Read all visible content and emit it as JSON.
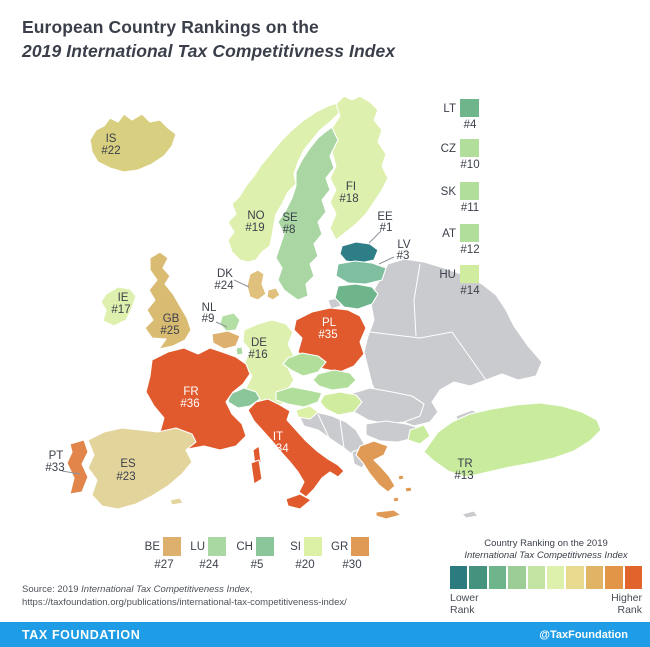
{
  "title": {
    "line1": "European Country Rankings on the",
    "line2": "2019 International Tax Competitivness Index"
  },
  "map": {
    "labels": [
      {
        "code": "IS",
        "rank": "#22"
      },
      {
        "code": "NO",
        "rank": "#19"
      },
      {
        "code": "SE",
        "rank": "#8"
      },
      {
        "code": "FI",
        "rank": "#18"
      },
      {
        "code": "EE",
        "rank": "#1"
      },
      {
        "code": "LV",
        "rank": "#3"
      },
      {
        "code": "DK",
        "rank": "#24"
      },
      {
        "code": "IE",
        "rank": "#17"
      },
      {
        "code": "GB",
        "rank": "#25"
      },
      {
        "code": "NL",
        "rank": "#9"
      },
      {
        "code": "DE",
        "rank": "#16"
      },
      {
        "code": "PL",
        "rank": "#35"
      },
      {
        "code": "FR",
        "rank": "#36"
      },
      {
        "code": "IT",
        "rank": "#34"
      },
      {
        "code": "ES",
        "rank": "#23"
      },
      {
        "code": "PT",
        "rank": "#33"
      },
      {
        "code": "TR",
        "rank": "#13"
      }
    ],
    "colors": {
      "is": "#d8cf81",
      "no": "#ddf0ae",
      "se": "#a9d6a2",
      "fi": "#ddf0ae",
      "ee": "#2e7e87",
      "lv": "#7fbfa0",
      "lt": "#6fb58c",
      "dk": "#dfc07c",
      "ie": "#ddf0ae",
      "gb": "#d9bb72",
      "nl": "#b4dfa4",
      "be": "#ddb06e",
      "lu": "#a9d8a2",
      "de": "#ddf0ae",
      "pl": "#e05a2d",
      "cz": "#b2de9b",
      "sk": "#b2de9b",
      "at": "#b2de9b",
      "hu": "#d0ec9e",
      "ch": "#8ac69a",
      "si": "#dcf0a6",
      "fr": "#e05a2d",
      "it": "#e05a2d",
      "es": "#e3d49c",
      "pt": "#e2854a",
      "gr": "#df9b55",
      "tr": "#c9eb9e",
      "unranked": "#c9cbce"
    }
  },
  "side_legend": [
    {
      "code": "LT",
      "rank": "#4",
      "color": "#6fb58c"
    },
    {
      "code": "CZ",
      "rank": "#10",
      "color": "#b2de9b"
    },
    {
      "code": "SK",
      "rank": "#11",
      "color": "#b2de9b"
    },
    {
      "code": "AT",
      "rank": "#12",
      "color": "#b2de9b"
    },
    {
      "code": "HU",
      "rank": "#14",
      "color": "#d0ec9e"
    }
  ],
  "bottom_legend": [
    {
      "code": "BE",
      "rank": "#27",
      "color": "#ddb06e"
    },
    {
      "code": "LU",
      "rank": "#24",
      "color": "#a9d8a2"
    },
    {
      "code": "CH",
      "rank": "#5",
      "color": "#8ac69a"
    },
    {
      "code": "SI",
      "rank": "#20",
      "color": "#dcf0a6"
    },
    {
      "code": "GR",
      "rank": "#30",
      "color": "#df9b55"
    }
  ],
  "scale_legend": {
    "title_line1": "Country Ranking on the 2019",
    "title_line2": "International Tax Competitivness Index",
    "colors": [
      "#2c7b7f",
      "#45937f",
      "#6fb58b",
      "#9ccd97",
      "#c3e4a2",
      "#def1ac",
      "#e7da8e",
      "#e1b465",
      "#e29447",
      "#e0642c"
    ],
    "lower_line1": "Lower",
    "lower_line2": "Rank",
    "higher_line1": "Higher",
    "higher_line2": "Rank"
  },
  "rankings": [
    {
      "code": "EE",
      "rank": 1
    },
    {
      "code": "LV",
      "rank": 3
    },
    {
      "code": "LT",
      "rank": 4
    },
    {
      "code": "CH",
      "rank": 5
    },
    {
      "code": "SE",
      "rank": 8
    },
    {
      "code": "NL",
      "rank": 9
    },
    {
      "code": "CZ",
      "rank": 10
    },
    {
      "code": "SK",
      "rank": 11
    },
    {
      "code": "AT",
      "rank": 12
    },
    {
      "code": "TR",
      "rank": 13
    },
    {
      "code": "HU",
      "rank": 14
    },
    {
      "code": "DE",
      "rank": 16
    },
    {
      "code": "IE",
      "rank": 17
    },
    {
      "code": "FI",
      "rank": 18
    },
    {
      "code": "NO",
      "rank": 19
    },
    {
      "code": "SI",
      "rank": 20
    },
    {
      "code": "IS",
      "rank": 22
    },
    {
      "code": "ES",
      "rank": 23
    },
    {
      "code": "DK",
      "rank": 24
    },
    {
      "code": "LU",
      "rank": 24
    },
    {
      "code": "GB",
      "rank": 25
    },
    {
      "code": "BE",
      "rank": 27
    },
    {
      "code": "GR",
      "rank": 30
    },
    {
      "code": "PT",
      "rank": 33
    },
    {
      "code": "IT",
      "rank": 34
    },
    {
      "code": "PL",
      "rank": 35
    },
    {
      "code": "FR",
      "rank": 36
    }
  ],
  "source": {
    "line1_prefix": "Source: 2019 ",
    "line1_italic": "International Tax Competitiveness Index",
    "line1_suffix": ",",
    "line2": "https://taxfoundation.org/publications/international-tax-competitiveness-index/"
  },
  "footer": {
    "brand": "TAX FOUNDATION",
    "handle": "@TaxFoundation"
  }
}
